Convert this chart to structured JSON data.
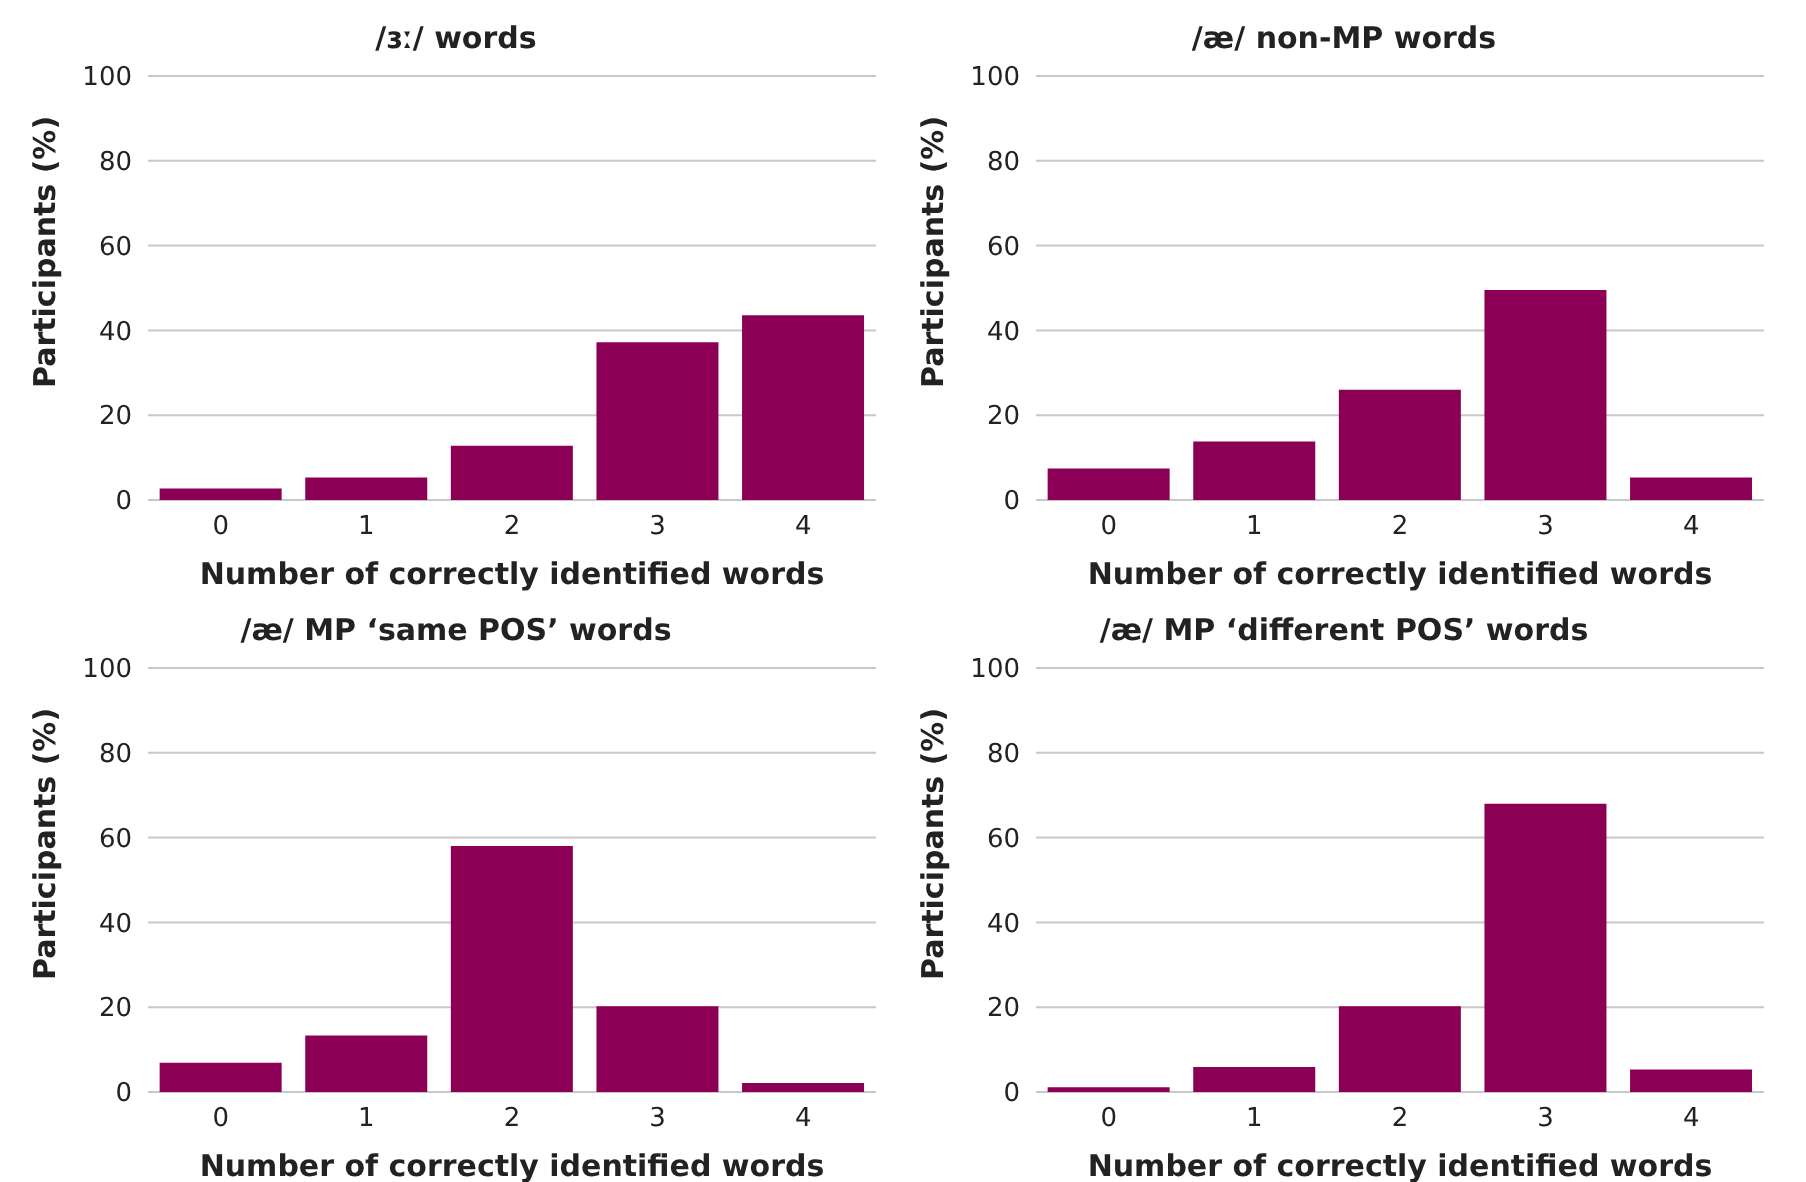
{
  "chart_data": [
    {
      "type": "bar",
      "title": "/ɜː/ words",
      "xlabel": "Number of correctly identified words",
      "ylabel": "Participants (%)",
      "categories": [
        "0",
        "1",
        "2",
        "3",
        "4"
      ],
      "values": [
        2.7,
        5.3,
        12.8,
        37.2,
        43.6
      ],
      "color": "#8b0054",
      "ylim": [
        0,
        100
      ],
      "yticks": [
        0,
        20,
        40,
        60,
        80,
        100
      ],
      "grid": "y"
    },
    {
      "type": "bar",
      "title": "/æ/ non-MP words",
      "xlabel": "Number of correctly identified words",
      "ylabel": "Participants (%)",
      "categories": [
        "0",
        "1",
        "2",
        "3",
        "4"
      ],
      "values": [
        7.4,
        13.8,
        26,
        49.5,
        5.3
      ],
      "color": "#8b0054",
      "ylim": [
        0,
        100
      ],
      "yticks": [
        0,
        20,
        40,
        60,
        80,
        100
      ],
      "grid": "y"
    },
    {
      "type": "bar",
      "title": "/æ/ MP ‘same POS’ words",
      "xlabel": "Number of correctly identified words",
      "ylabel": "Participants (%)",
      "categories": [
        "0",
        "1",
        "2",
        "3",
        "4"
      ],
      "values": [
        6.9,
        13.3,
        58,
        20.2,
        2.1
      ],
      "color": "#8b0054",
      "ylim": [
        0,
        100
      ],
      "yticks": [
        0,
        20,
        40,
        60,
        80,
        100
      ],
      "grid": "y"
    },
    {
      "type": "bar",
      "title": "/æ/ MP ‘different POS’ words",
      "xlabel": "Number of correctly identified words",
      "ylabel": "Participants (%)",
      "categories": [
        "0",
        "1",
        "2",
        "3",
        "4"
      ],
      "values": [
        1.1,
        5.9,
        20.2,
        68,
        5.3
      ],
      "color": "#8b0054",
      "ylim": [
        0,
        100
      ],
      "yticks": [
        0,
        20,
        40,
        60,
        80,
        100
      ],
      "grid": "y"
    }
  ]
}
